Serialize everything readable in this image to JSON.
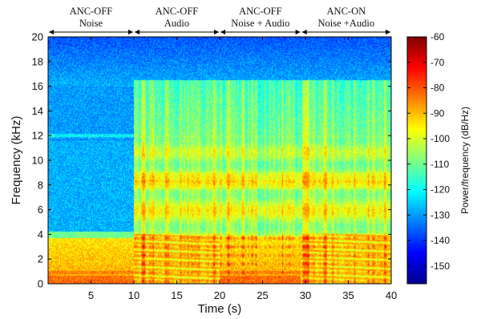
{
  "chart_data": {
    "type": "heatmap",
    "title": "",
    "xlabel": "Time (s)",
    "ylabel": "Frequency (kHz)",
    "xlim": [
      0,
      40
    ],
    "ylim": [
      0,
      20
    ],
    "x_ticks": [
      5,
      10,
      15,
      20,
      25,
      30,
      35,
      40
    ],
    "y_ticks": [
      0,
      2,
      4,
      6,
      8,
      10,
      12,
      14,
      16,
      18,
      20
    ],
    "colorbar": {
      "label": "Power/frequency (dB/Hz)",
      "range": [
        -157,
        -60
      ],
      "ticks": [
        -60,
        -70,
        -80,
        -90,
        -100,
        -110,
        -120,
        -130,
        -140,
        -150
      ],
      "colormap": "jet"
    },
    "segments": [
      {
        "line1": "ANC-OFF",
        "line2": "Noise",
        "start": 0,
        "end": 10
      },
      {
        "line1": "ANC-OFF",
        "line2": "Audio",
        "start": 10,
        "end": 20
      },
      {
        "line1": "ANC-OFF",
        "line2": "Noise + Audio",
        "start": 20,
        "end": 29.5
      },
      {
        "line1": "ANC-ON",
        "line2": "Noise +Audio",
        "start": 29.5,
        "end": 40
      }
    ]
  }
}
